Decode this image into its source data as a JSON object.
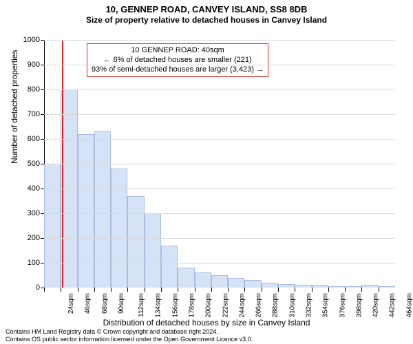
{
  "title": "10, GENNEP ROAD, CANVEY ISLAND, SS8 8DB",
  "subtitle": "Size of property relative to detached houses in Canvey Island",
  "ylabel": "Number of detached properties",
  "xlabel": "Distribution of detached houses by size in Canvey Island",
  "footnote1": "Contains HM Land Registry data © Crown copyright and database right 2024.",
  "footnote2": "Contains OS public sector information licensed under the Open Government Licence v3.0.",
  "title_fontsize": 13,
  "subtitle_fontsize": 12,
  "background_color": "#ffffff",
  "grid_color": "#d9d9d9",
  "axis_color": "#000000",
  "chart": {
    "type": "histogram",
    "bar_fill": "#d6e2f5",
    "bar_stroke": "#a7bde0",
    "ylim": [
      0,
      1000
    ],
    "ytick_step": 100,
    "xticks": [
      "24sqm",
      "46sqm",
      "68sqm",
      "90sqm",
      "112sqm",
      "134sqm",
      "156sqm",
      "178sqm",
      "200sqm",
      "222sqm",
      "244sqm",
      "266sqm",
      "288sqm",
      "310sqm",
      "332sqm",
      "354sqm",
      "376sqm",
      "398sqm",
      "420sqm",
      "442sqm",
      "464sqm"
    ],
    "values": [
      500,
      800,
      620,
      630,
      480,
      370,
      300,
      170,
      80,
      60,
      50,
      40,
      30,
      20,
      15,
      10,
      10,
      5,
      5,
      10,
      5
    ]
  },
  "reference_line": {
    "color": "#e52620",
    "position_index": 1,
    "fraction_within": 0.1
  },
  "callout": {
    "border_color": "#e52620",
    "bg_color": "#ffffff",
    "line1": "10 GENNEP ROAD: 40sqm",
    "line2": "← 6% of detached houses are smaller (221)",
    "line3": "93% of semi-detached houses are larger (3,423) →"
  }
}
